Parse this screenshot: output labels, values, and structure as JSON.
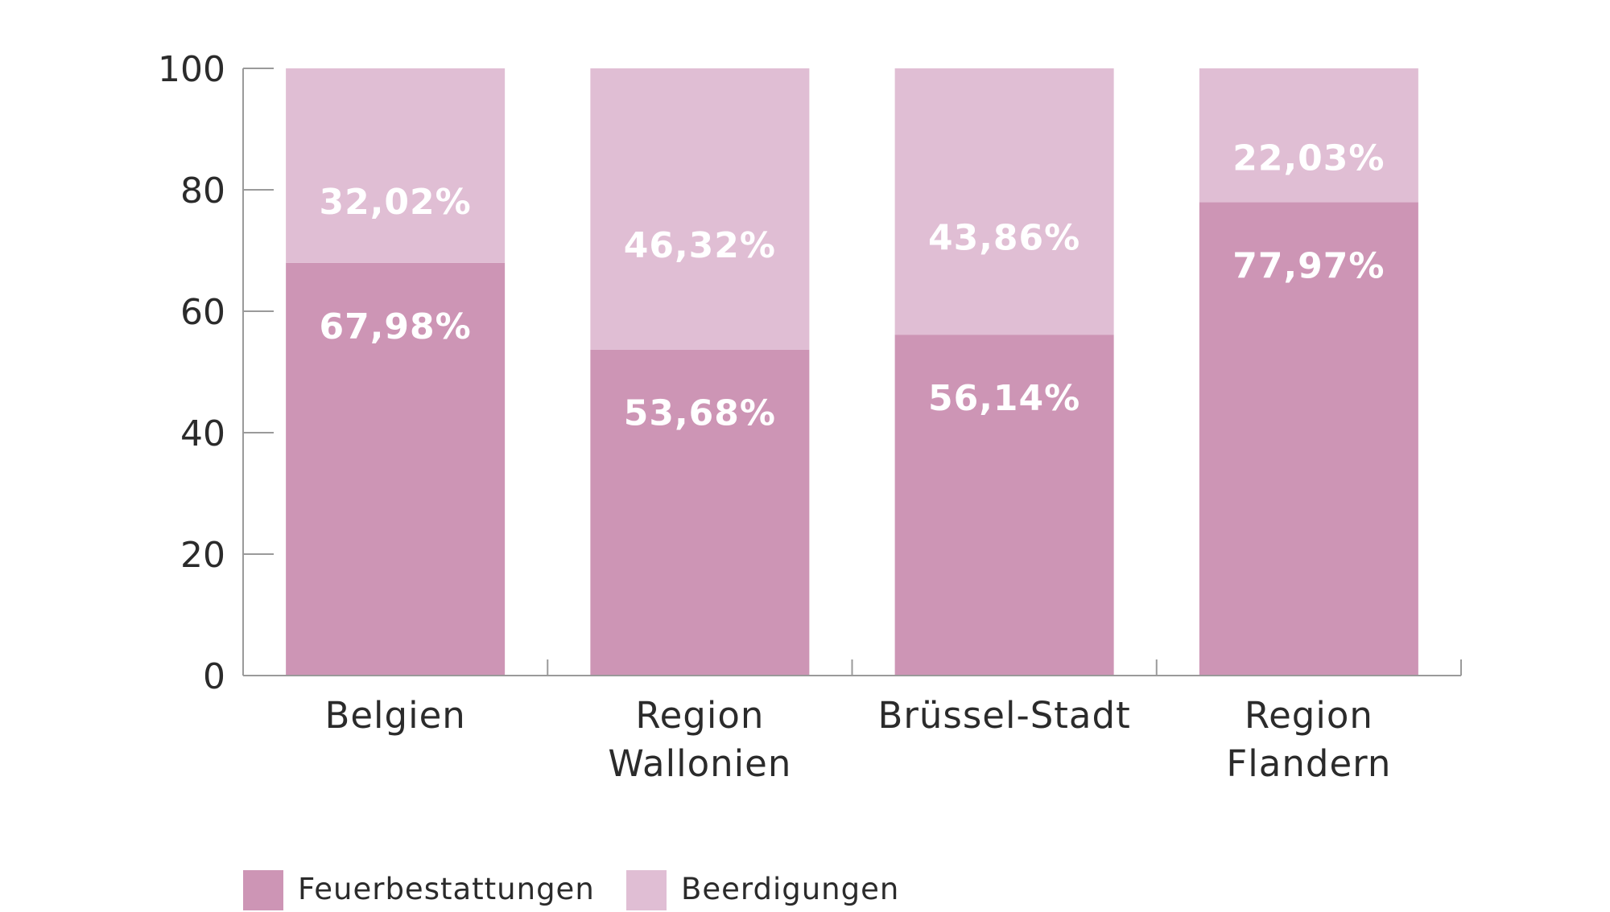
{
  "chart_data": {
    "type": "bar",
    "stacked": true,
    "title": "",
    "xlabel": "",
    "ylabel": "",
    "ylim": [
      0,
      100
    ],
    "yticks": [
      0,
      20,
      40,
      60,
      80,
      100
    ],
    "grid": false,
    "legend_position": "bottom-left",
    "categories": [
      [
        "Belgien"
      ],
      [
        "Region",
        "Wallonien"
      ],
      [
        "Brüssel-Stadt"
      ],
      [
        "Region",
        "Flandern"
      ]
    ],
    "series": [
      {
        "name": "Feuerbestattungen",
        "color": "#cd95b5",
        "values": [
          67.98,
          53.68,
          56.14,
          77.97
        ],
        "labels": [
          "67,98%",
          "53,68%",
          "56,14%",
          "77,97%"
        ]
      },
      {
        "name": "Beerdigungen",
        "color": "#e0bed4",
        "values": [
          32.02,
          46.32,
          43.86,
          22.03
        ],
        "labels": [
          "32,02%",
          "46,32%",
          "43,86%",
          "22,03%"
        ]
      }
    ]
  }
}
